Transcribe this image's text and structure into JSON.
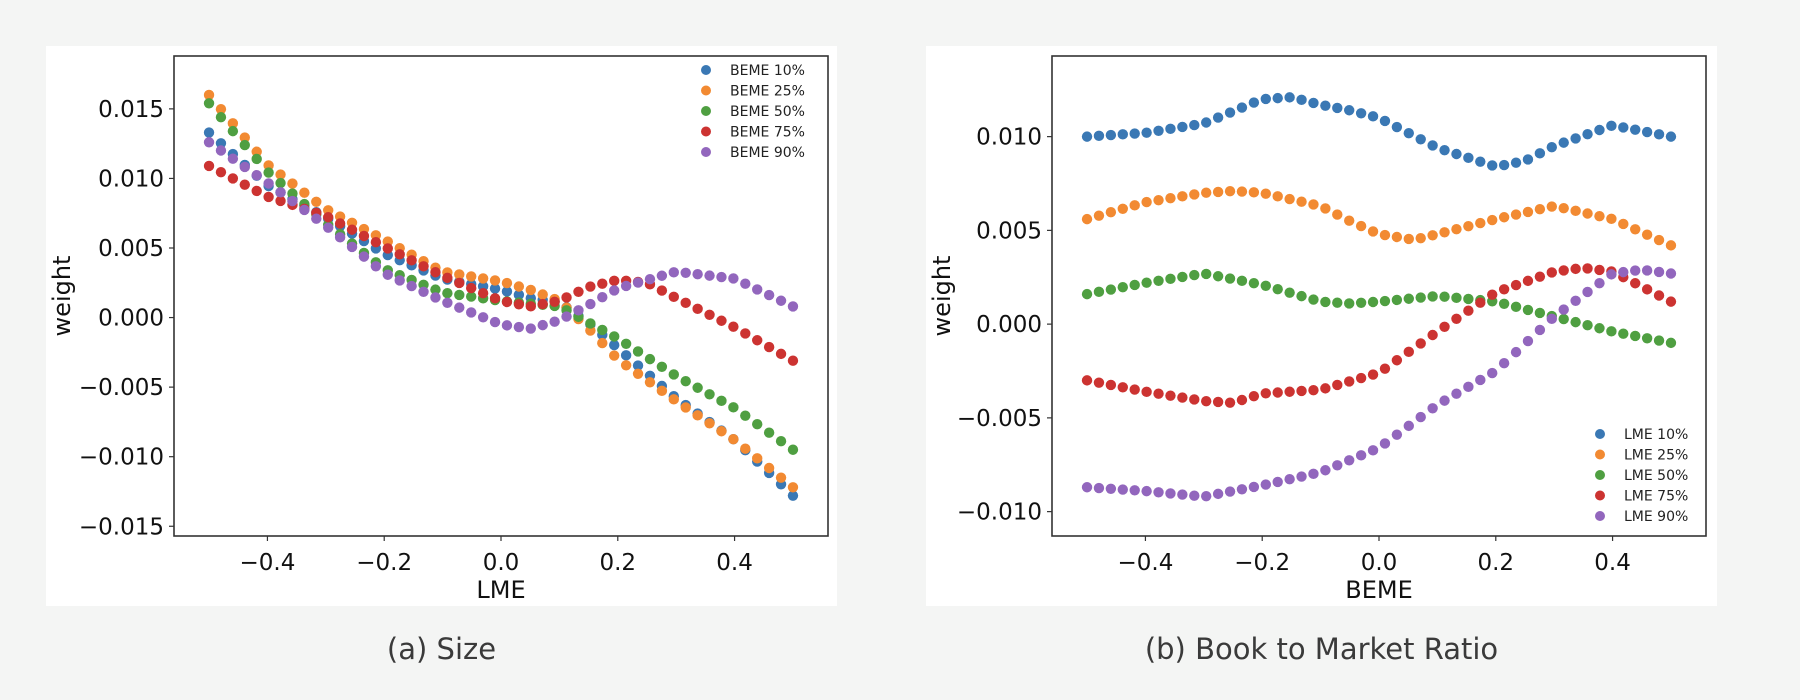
{
  "captions": {
    "a": "(a) Size",
    "b": "(b) Book to Market Ratio"
  },
  "colors": {
    "c1": "#3a78b4",
    "c2": "#f28a32",
    "c3": "#4f9f41",
    "c4": "#cc3331",
    "c5": "#9266bd"
  },
  "chart_data": [
    {
      "type": "scatter",
      "xlabel": "LME",
      "ylabel": "weight",
      "xlim": [
        -0.56,
        0.56
      ],
      "ylim": [
        -0.0157,
        0.0188
      ],
      "xticks": [
        -0.4,
        -0.2,
        0.0,
        0.2,
        0.4
      ],
      "xtick_labels": [
        "−0.4",
        "−0.2",
        "0.0",
        "0.2",
        "0.4"
      ],
      "yticks": [
        0.015,
        0.01,
        0.005,
        0.0,
        -0.005,
        -0.01,
        -0.015
      ],
      "ytick_labels": [
        "0.015",
        "0.010",
        "0.005",
        "0.000",
        "−0.005",
        "−0.010",
        "−0.015"
      ],
      "legend_position": "top-right",
      "x_range": [
        -0.5,
        0.5
      ],
      "n_points": 50,
      "series": [
        {
          "name": "BEME 10%",
          "color": "#3a78b4",
          "knots": [
            [
              -0.5,
              0.0133
            ],
            [
              -0.4,
              0.0095
            ],
            [
              -0.3,
              0.0072
            ],
            [
              -0.2,
              0.0046
            ],
            [
              -0.1,
              0.0028
            ],
            [
              0.0,
              0.002
            ],
            [
              0.05,
              0.0014
            ],
            [
              0.1,
              0.0011
            ],
            [
              0.15,
              -0.0004
            ],
            [
              0.2,
              -0.0022
            ],
            [
              0.3,
              -0.0058
            ],
            [
              0.4,
              -0.0088
            ],
            [
              0.5,
              -0.0128
            ]
          ]
        },
        {
          "name": "BEME 25%",
          "color": "#f28a32",
          "knots": [
            [
              -0.5,
              0.016
            ],
            [
              -0.4,
              0.011
            ],
            [
              -0.3,
              0.0078
            ],
            [
              -0.2,
              0.0056
            ],
            [
              -0.1,
              0.0033
            ],
            [
              0.0,
              0.0026
            ],
            [
              0.05,
              0.002
            ],
            [
              0.1,
              0.0012
            ],
            [
              0.15,
              -0.0008
            ],
            [
              0.2,
              -0.003
            ],
            [
              0.3,
              -0.006
            ],
            [
              0.4,
              -0.0088
            ],
            [
              0.5,
              -0.0122
            ]
          ]
        },
        {
          "name": "BEME 50%",
          "color": "#4f9f41",
          "knots": [
            [
              -0.5,
              0.0154
            ],
            [
              -0.4,
              0.0105
            ],
            [
              -0.3,
              0.0068
            ],
            [
              -0.2,
              0.0035
            ],
            [
              -0.1,
              0.0018
            ],
            [
              0.0,
              0.0012
            ],
            [
              0.1,
              0.0008
            ],
            [
              0.2,
              -0.0015
            ],
            [
              0.3,
              -0.0042
            ],
            [
              0.4,
              -0.0065
            ],
            [
              0.5,
              -0.0095
            ]
          ]
        },
        {
          "name": "BEME 75%",
          "color": "#cc3331",
          "knots": [
            [
              -0.5,
              0.0109
            ],
            [
              -0.4,
              0.0087
            ],
            [
              -0.3,
              0.0073
            ],
            [
              -0.2,
              0.0051
            ],
            [
              -0.1,
              0.003
            ],
            [
              0.0,
              0.0012
            ],
            [
              0.05,
              0.0008
            ],
            [
              0.1,
              0.0012
            ],
            [
              0.15,
              0.0022
            ],
            [
              0.2,
              0.0027
            ],
            [
              0.25,
              0.0025
            ],
            [
              0.3,
              0.0014
            ],
            [
              0.4,
              -0.0007
            ],
            [
              0.5,
              -0.0031
            ]
          ]
        },
        {
          "name": "BEME 90%",
          "color": "#9266bd",
          "knots": [
            [
              -0.5,
              0.0126
            ],
            [
              -0.4,
              0.0097
            ],
            [
              -0.3,
              0.0066
            ],
            [
              -0.2,
              0.0032
            ],
            [
              -0.1,
              0.0012
            ],
            [
              0.0,
              -0.0005
            ],
            [
              0.05,
              -0.0008
            ],
            [
              0.1,
              -0.0002
            ],
            [
              0.15,
              0.0009
            ],
            [
              0.2,
              0.0021
            ],
            [
              0.3,
              0.0033
            ],
            [
              0.4,
              0.0028
            ],
            [
              0.5,
              0.0008
            ]
          ]
        }
      ]
    },
    {
      "type": "scatter",
      "xlabel": "BEME",
      "ylabel": "weight",
      "xlim": [
        -0.56,
        0.56
      ],
      "ylim": [
        -0.0113,
        0.0143
      ],
      "xticks": [
        -0.4,
        -0.2,
        0.0,
        0.2,
        0.4
      ],
      "xtick_labels": [
        "−0.4",
        "−0.2",
        "0.0",
        "0.2",
        "0.4"
      ],
      "yticks": [
        0.01,
        0.005,
        0.0,
        -0.005,
        -0.01
      ],
      "ytick_labels": [
        "0.010",
        "0.005",
        "0.000",
        "−0.005",
        "−0.010"
      ],
      "legend_position": "bottom-right",
      "x_range": [
        -0.5,
        0.5
      ],
      "n_points": 50,
      "series": [
        {
          "name": "LME 10%",
          "color": "#3a78b4",
          "knots": [
            [
              -0.5,
              0.01
            ],
            [
              -0.4,
              0.0102
            ],
            [
              -0.3,
              0.0107
            ],
            [
              -0.2,
              0.012
            ],
            [
              -0.15,
              0.0121
            ],
            [
              -0.1,
              0.0117
            ],
            [
              -0.05,
              0.0114
            ],
            [
              0.0,
              0.011
            ],
            [
              0.1,
              0.0094
            ],
            [
              0.2,
              0.0084
            ],
            [
              0.25,
              0.0087
            ],
            [
              0.3,
              0.0095
            ],
            [
              0.4,
              0.0106
            ],
            [
              0.5,
              0.01
            ]
          ]
        },
        {
          "name": "LME 25%",
          "color": "#f28a32",
          "knots": [
            [
              -0.5,
              0.0056
            ],
            [
              -0.4,
              0.0065
            ],
            [
              -0.3,
              0.007
            ],
            [
              -0.25,
              0.0071
            ],
            [
              -0.2,
              0.007
            ],
            [
              -0.1,
              0.0063
            ],
            [
              -0.05,
              0.0055
            ],
            [
              0.0,
              0.0048
            ],
            [
              0.06,
              0.0045
            ],
            [
              0.1,
              0.0048
            ],
            [
              0.2,
              0.0056
            ],
            [
              0.3,
              0.0063
            ],
            [
              0.4,
              0.0056
            ],
            [
              0.5,
              0.0042
            ]
          ]
        },
        {
          "name": "LME 50%",
          "color": "#4f9f41",
          "knots": [
            [
              -0.5,
              0.0016
            ],
            [
              -0.4,
              0.0022
            ],
            [
              -0.3,
              0.0027
            ],
            [
              -0.2,
              0.0021
            ],
            [
              -0.1,
              0.0012
            ],
            [
              -0.05,
              0.0011
            ],
            [
              0.0,
              0.0012
            ],
            [
              0.1,
              0.0015
            ],
            [
              0.2,
              0.0012
            ],
            [
              0.3,
              0.0004
            ],
            [
              0.4,
              -0.0004
            ],
            [
              0.5,
              -0.001
            ]
          ]
        },
        {
          "name": "LME 75%",
          "color": "#cc3331",
          "knots": [
            [
              -0.5,
              -0.003
            ],
            [
              -0.4,
              -0.0036
            ],
            [
              -0.3,
              -0.0041
            ],
            [
              -0.25,
              -0.0042
            ],
            [
              -0.2,
              -0.0037
            ],
            [
              -0.1,
              -0.0035
            ],
            [
              0.0,
              -0.0026
            ],
            [
              0.1,
              -0.0004
            ],
            [
              0.2,
              0.0017
            ],
            [
              0.3,
              0.0028
            ],
            [
              0.35,
              0.003
            ],
            [
              0.4,
              0.0028
            ],
            [
              0.5,
              0.0012
            ]
          ]
        },
        {
          "name": "LME 90%",
          "color": "#9266bd",
          "knots": [
            [
              -0.5,
              -0.0087
            ],
            [
              -0.4,
              -0.0089
            ],
            [
              -0.3,
              -0.0092
            ],
            [
              -0.2,
              -0.0086
            ],
            [
              -0.1,
              -0.0079
            ],
            [
              0.0,
              -0.0066
            ],
            [
              0.1,
              -0.0043
            ],
            [
              0.2,
              -0.0025
            ],
            [
              0.3,
              0.0004
            ],
            [
              0.4,
              0.0027
            ],
            [
              0.45,
              0.0029
            ],
            [
              0.5,
              0.0027
            ]
          ]
        }
      ]
    }
  ]
}
